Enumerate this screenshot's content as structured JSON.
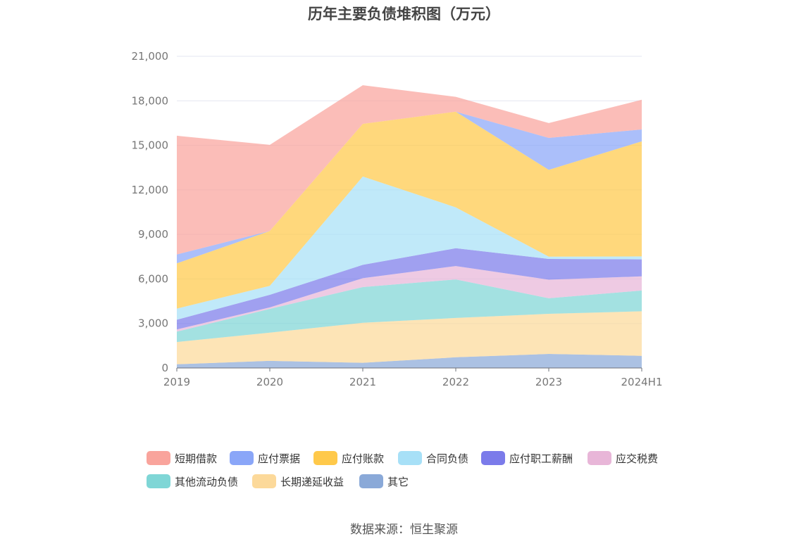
{
  "chart_data": {
    "type": "area",
    "stacked": true,
    "title": "历年主要负债堆积图（万元）",
    "source": "数据来源：恒生聚源",
    "categories": [
      "2019",
      "2020",
      "2021",
      "2022",
      "2023",
      "2024H1"
    ],
    "ylim": [
      0,
      21000
    ],
    "yticks": [
      0,
      3000,
      6000,
      9000,
      12000,
      15000,
      18000,
      21000
    ],
    "ytick_labels": [
      "0",
      "3,000",
      "6,000",
      "9,000",
      "12,000",
      "15,000",
      "18,000",
      "21,000"
    ],
    "grid": true,
    "legend_position": "bottom",
    "series": [
      {
        "name": "其它",
        "color": "#8aa9d8",
        "values": [
          250,
          480,
          350,
          720,
          950,
          820
        ]
      },
      {
        "name": "长期递延收益",
        "color": "#fcd99a",
        "values": [
          1500,
          1900,
          2700,
          2650,
          2700,
          3000
        ]
      },
      {
        "name": "其他流动负债",
        "color": "#7fd6d6",
        "values": [
          700,
          1600,
          2400,
          2600,
          1050,
          1400
        ]
      },
      {
        "name": "应交税费",
        "color": "#e8b6d8",
        "values": [
          150,
          100,
          600,
          900,
          1250,
          950
        ]
      },
      {
        "name": "应付职工薪酬",
        "color": "#7b7bea",
        "values": [
          650,
          850,
          900,
          1200,
          1400,
          1150
        ]
      },
      {
        "name": "合同负债",
        "color": "#a7e0f7",
        "values": [
          750,
          600,
          5950,
          2750,
          150,
          200
        ]
      },
      {
        "name": "应付账款",
        "color": "#ffc94a",
        "values": [
          3050,
          3700,
          3550,
          6450,
          5850,
          7750
        ]
      },
      {
        "name": "应付票据",
        "color": "#8aa6f8",
        "values": [
          600,
          0,
          0,
          0,
          2150,
          800
        ]
      },
      {
        "name": "短期借款",
        "color": "#f9a49c",
        "values": [
          8000,
          5800,
          2600,
          1000,
          1000,
          2000
        ]
      }
    ]
  },
  "legend_order": [
    "短期借款",
    "应付票据",
    "应付账款",
    "合同负债",
    "应付职工薪酬",
    "应交税费",
    "其他流动负债",
    "长期递延收益",
    "其它"
  ]
}
